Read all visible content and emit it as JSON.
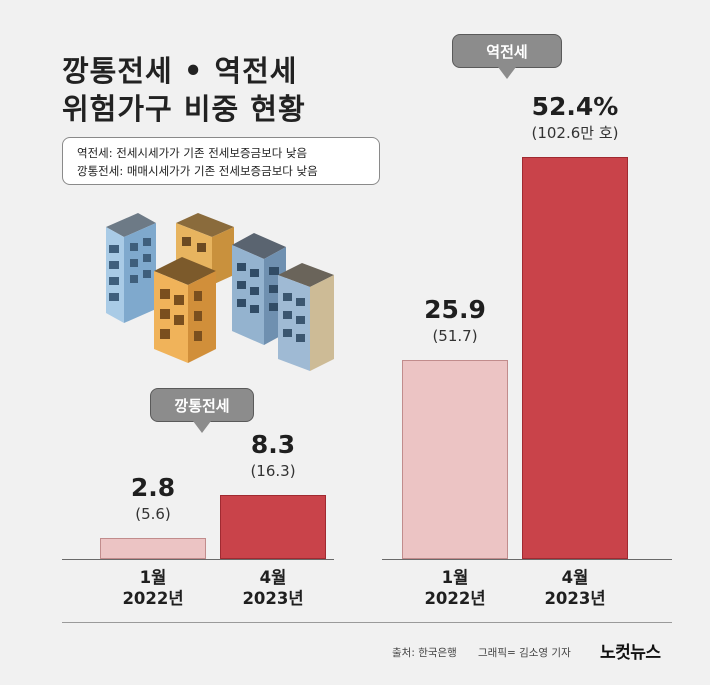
{
  "title": {
    "line1": "깡통전세 • 역전세",
    "line2": "위험가구 비중 현황"
  },
  "legend": {
    "line1": "역전세: 전세시세가가 기존 전세보증금보다 낮음",
    "line2": "깡통전세: 매매시세가가 기존 전세보증금보다 낮음"
  },
  "chart_data": {
    "type": "bar",
    "groups": [
      {
        "name": "깡통전세",
        "bars": [
          {
            "period": "1월",
            "year": "2022년",
            "value": 2.8,
            "value_label": "2.8",
            "sub_label": "(5.6)"
          },
          {
            "period": "4월",
            "year": "2023년",
            "value": 8.3,
            "value_label": "8.3",
            "sub_label": "(16.3)"
          }
        ]
      },
      {
        "name": "역전세",
        "bars": [
          {
            "period": "1월",
            "year": "2022년",
            "value": 25.9,
            "value_label": "25.9",
            "sub_label": "(51.7)"
          },
          {
            "period": "4월",
            "year": "2023년",
            "value": 52.4,
            "value_label": "52.4%",
            "sub_label": "(102.6만 호)"
          }
        ]
      }
    ],
    "title": "",
    "xlabel": "",
    "ylabel": "",
    "ylim": [
      0,
      52.4
    ],
    "grid": false,
    "legend": "none"
  },
  "colors": {
    "bar_2022": "#ecc4c4",
    "bar_2023": "#c9434a",
    "callout": "#8c8c8c",
    "background": "#f1f1f1"
  },
  "illustration": {
    "icon": "apartment-buildings-icon"
  },
  "footer": {
    "source": "출처: 한국은행",
    "graphic": "그래픽= 김소영 기자",
    "logo": "노컷뉴스"
  }
}
